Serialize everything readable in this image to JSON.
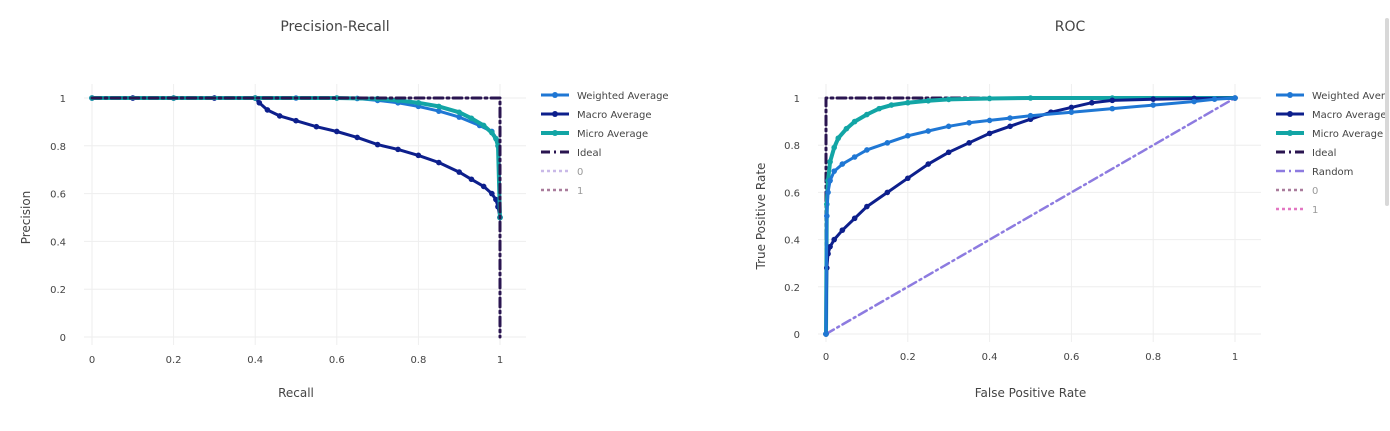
{
  "colors": {
    "weighted": "#1f77d4",
    "macro": "#0d1f8c",
    "micro": "#12a5a5",
    "ideal": "#2a1550",
    "random": "#8d7be0",
    "class0_pr": "#c9b9e8",
    "class1_pr": "#a97c9c",
    "class0_roc": "#a97c9c",
    "class1_roc": "#e377c2",
    "grid": "#eeeeee",
    "zeroline": "#444444"
  },
  "chart_data": [
    {
      "type": "line",
      "title": "Precision-Recall",
      "xlabel": "Recall",
      "ylabel": "Precision",
      "xlim": [
        0,
        1
      ],
      "ylim": [
        0,
        1
      ],
      "xticks": [
        "0",
        "0.2",
        "0.4",
        "0.6",
        "0.8",
        "1"
      ],
      "yticks": [
        "0",
        "0.2",
        "0.4",
        "0.6",
        "0.8",
        "1"
      ],
      "grid": true,
      "legend": "right",
      "series": [
        {
          "name": "Weighted Average",
          "x": [
            0,
            0.1,
            0.2,
            0.3,
            0.4,
            0.5,
            0.6,
            0.65,
            0.7,
            0.75,
            0.8,
            0.85,
            0.9,
            0.95,
            0.98,
            0.995,
            1.0
          ],
          "y": [
            1,
            1,
            1,
            1,
            1,
            1,
            1,
            0.998,
            0.99,
            0.98,
            0.965,
            0.945,
            0.92,
            0.885,
            0.86,
            0.82,
            0.5
          ]
        },
        {
          "name": "Macro Average",
          "x": [
            0,
            0.1,
            0.2,
            0.3,
            0.4,
            0.41,
            0.43,
            0.46,
            0.5,
            0.55,
            0.6,
            0.65,
            0.7,
            0.75,
            0.8,
            0.85,
            0.9,
            0.93,
            0.96,
            0.98,
            0.99,
            0.995,
            1.0
          ],
          "y": [
            1,
            1,
            1,
            1,
            1,
            0.98,
            0.95,
            0.925,
            0.905,
            0.88,
            0.86,
            0.835,
            0.805,
            0.785,
            0.76,
            0.73,
            0.69,
            0.66,
            0.63,
            0.6,
            0.575,
            0.545,
            0.5
          ]
        },
        {
          "name": "Micro Average",
          "x": [
            0,
            0.2,
            0.4,
            0.6,
            0.7,
            0.75,
            0.8,
            0.85,
            0.9,
            0.93,
            0.96,
            0.98,
            0.99,
            0.995,
            1.0
          ],
          "y": [
            1,
            1,
            1,
            1,
            0.997,
            0.99,
            0.98,
            0.965,
            0.94,
            0.915,
            0.885,
            0.855,
            0.83,
            0.8,
            0.5
          ]
        },
        {
          "name": "Ideal",
          "x": [
            0,
            1,
            1
          ],
          "y": [
            1,
            1,
            0
          ]
        },
        {
          "name": "0",
          "x": [],
          "y": []
        },
        {
          "name": "1",
          "x": [],
          "y": []
        }
      ]
    },
    {
      "type": "line",
      "title": "ROC",
      "xlabel": "False Positive Rate",
      "ylabel": "True Positive Rate",
      "xlim": [
        0,
        1
      ],
      "ylim": [
        0,
        1
      ],
      "xticks": [
        "0",
        "0.2",
        "0.4",
        "0.6",
        "0.8",
        "1"
      ],
      "yticks": [
        "0",
        "0.2",
        "0.4",
        "0.6",
        "0.8",
        "1"
      ],
      "grid": true,
      "legend": "right",
      "series": [
        {
          "name": "Weighted Average",
          "x": [
            0,
            0.002,
            0.005,
            0.01,
            0.02,
            0.04,
            0.07,
            0.1,
            0.15,
            0.2,
            0.25,
            0.3,
            0.35,
            0.4,
            0.45,
            0.5,
            0.6,
            0.7,
            0.8,
            0.9,
            0.95,
            1.0
          ],
          "y": [
            0,
            0.5,
            0.6,
            0.65,
            0.69,
            0.72,
            0.75,
            0.78,
            0.81,
            0.84,
            0.86,
            0.88,
            0.895,
            0.905,
            0.915,
            0.925,
            0.94,
            0.955,
            0.97,
            0.985,
            0.995,
            1.0
          ]
        },
        {
          "name": "Macro Average",
          "x": [
            0,
            0.002,
            0.005,
            0.01,
            0.02,
            0.04,
            0.07,
            0.1,
            0.15,
            0.2,
            0.25,
            0.3,
            0.35,
            0.4,
            0.45,
            0.5,
            0.55,
            0.6,
            0.65,
            0.7,
            0.8,
            0.9,
            1.0
          ],
          "y": [
            0,
            0.28,
            0.34,
            0.37,
            0.4,
            0.44,
            0.49,
            0.54,
            0.6,
            0.66,
            0.72,
            0.77,
            0.81,
            0.85,
            0.88,
            0.91,
            0.94,
            0.96,
            0.98,
            0.99,
            0.995,
            0.998,
            1.0
          ]
        },
        {
          "name": "Micro Average",
          "x": [
            0,
            0.002,
            0.005,
            0.01,
            0.02,
            0.03,
            0.05,
            0.07,
            0.1,
            0.13,
            0.16,
            0.2,
            0.25,
            0.3,
            0.4,
            0.5,
            0.7,
            1.0
          ],
          "y": [
            0,
            0.55,
            0.65,
            0.73,
            0.79,
            0.83,
            0.87,
            0.9,
            0.93,
            0.955,
            0.97,
            0.98,
            0.988,
            0.994,
            0.998,
            1.0,
            1.0,
            1.0
          ]
        },
        {
          "name": "Ideal",
          "x": [
            0,
            0,
            1
          ],
          "y": [
            0,
            1,
            1
          ]
        },
        {
          "name": "Random",
          "x": [
            0,
            1
          ],
          "y": [
            0,
            1
          ]
        },
        {
          "name": "0",
          "x": [],
          "y": []
        },
        {
          "name": "1",
          "x": [],
          "y": []
        }
      ]
    }
  ]
}
